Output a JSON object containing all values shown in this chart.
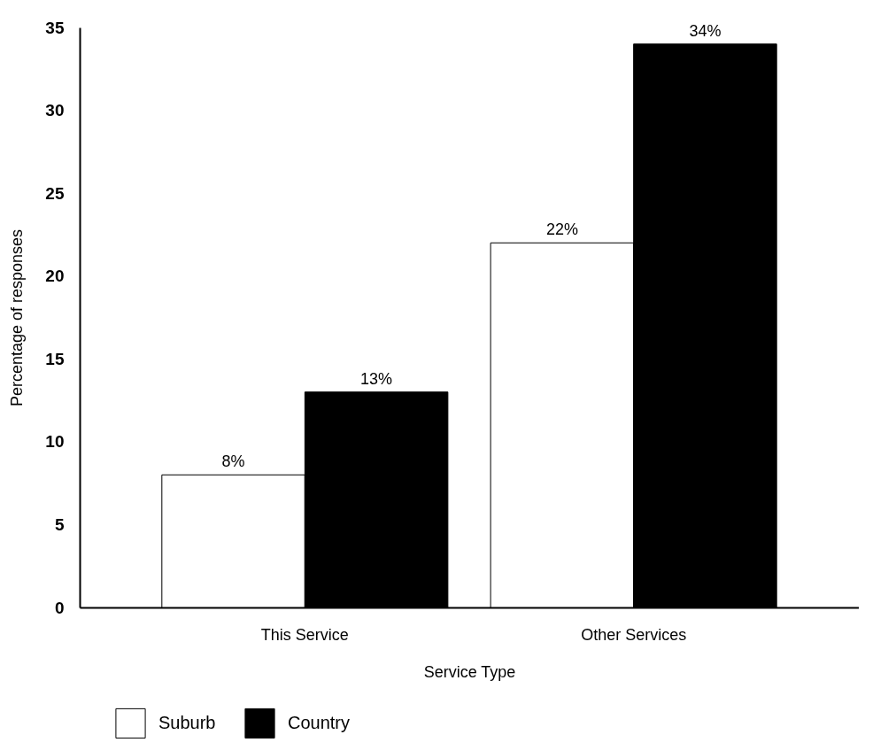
{
  "chart_data": {
    "type": "bar",
    "xlabel": "Service Type",
    "ylabel": "Percentage of responses",
    "categories": [
      "This Service",
      "Other Services"
    ],
    "series": [
      {
        "name": "Suburb",
        "color": "#ffffff",
        "values": [
          8,
          22
        ],
        "value_labels": [
          "8%",
          "22%"
        ]
      },
      {
        "name": "Country",
        "color": "#000000",
        "values": [
          13,
          34
        ],
        "value_labels": [
          "13%",
          "34%"
        ]
      }
    ],
    "ylim": [
      0,
      35
    ],
    "yticks": [
      0,
      5,
      10,
      15,
      20,
      25,
      30,
      35
    ],
    "grid": false,
    "legend": "bottom left"
  }
}
